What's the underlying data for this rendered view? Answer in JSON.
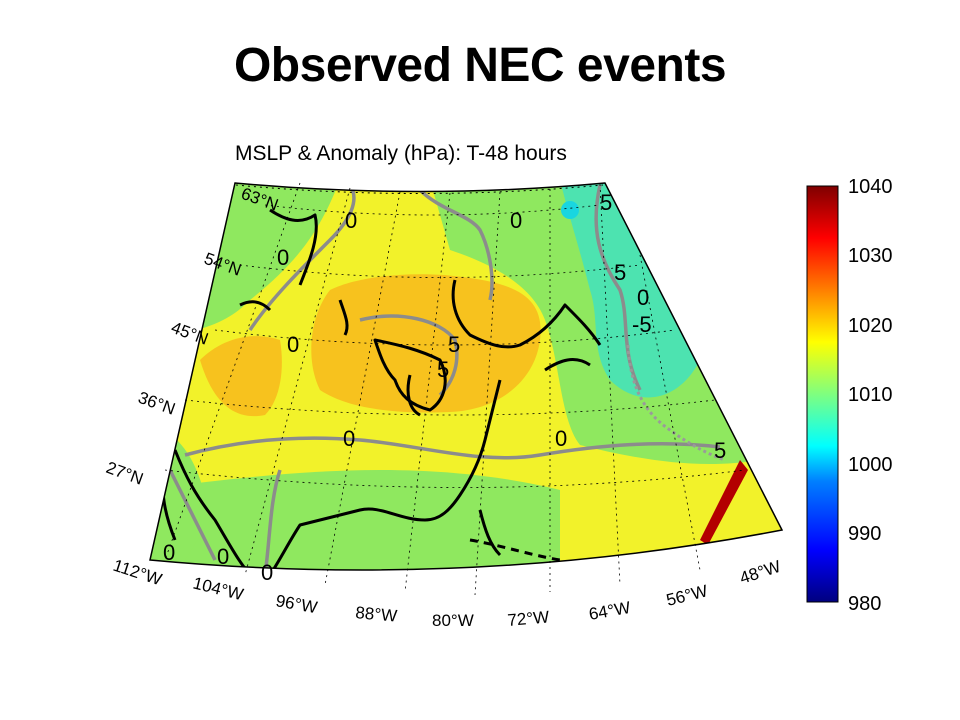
{
  "slide_title": "Observed NEC events",
  "map_title": "MSLP & Anomaly (hPa): T-48 hours",
  "lat_labels": [
    "63°N",
    "54°N",
    "45°N",
    "36°N",
    "27°N"
  ],
  "lon_labels": [
    "112°W",
    "104°W",
    "96°W",
    "88°W",
    "80°W",
    "72°W",
    "64°W",
    "56°W",
    "48°W"
  ],
  "contour_labels": [
    "0",
    "0",
    "0",
    "0",
    "0",
    "0",
    "0",
    "0",
    "0",
    "0",
    "5",
    "5",
    "5",
    "5",
    "5",
    "-5"
  ],
  "colorbar": {
    "ticks": [
      "1040",
      "1030",
      "1020",
      "1010",
      "1000",
      "990",
      "980"
    ],
    "min": 980,
    "max": 1040,
    "colors": [
      "#00007f",
      "#0000ff",
      "#007fff",
      "#00ffff",
      "#7fff7f",
      "#ffff00",
      "#ff7f00",
      "#ff0000",
      "#7f0000"
    ]
  },
  "field_colors": {
    "green": "#8fe85f",
    "teal": "#4de3b0",
    "yellow": "#f2f22a",
    "light_yellow": "#f5f23a",
    "orange": "#f7c21e"
  }
}
